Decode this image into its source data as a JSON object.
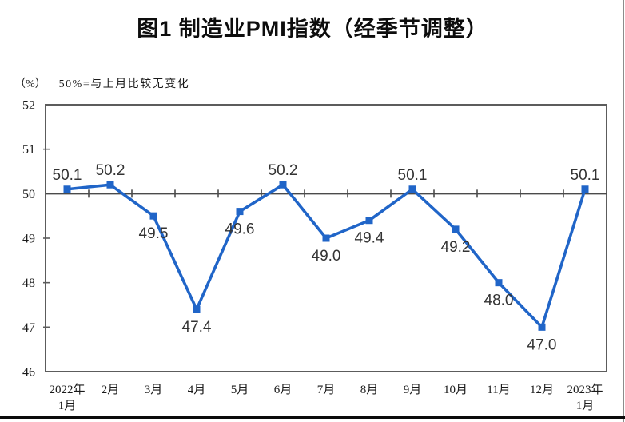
{
  "chart_data": {
    "type": "line",
    "title": "图1 制造业PMI指数（经季节调整）",
    "unit_label": "（%）",
    "note": "50%=与上月比较无变化",
    "categories": [
      "2022年1月",
      "2月",
      "3月",
      "4月",
      "5月",
      "6月",
      "7月",
      "8月",
      "9月",
      "10月",
      "11月",
      "12月",
      "2023年1月"
    ],
    "x_labels": [
      [
        "2022年",
        "1月"
      ],
      [
        "2月"
      ],
      [
        "3月"
      ],
      [
        "4月"
      ],
      [
        "5月"
      ],
      [
        "6月"
      ],
      [
        "7月"
      ],
      [
        "8月"
      ],
      [
        "9月"
      ],
      [
        "10月"
      ],
      [
        "11月"
      ],
      [
        "12月"
      ],
      [
        "2023年",
        "1月"
      ]
    ],
    "series": [
      {
        "name": "制造业PMI",
        "values": [
          50.1,
          50.2,
          49.5,
          47.4,
          49.6,
          50.2,
          49.0,
          49.4,
          50.1,
          49.2,
          48.0,
          47.0,
          50.1
        ],
        "labels": [
          "50.1",
          "50.2",
          "49.5",
          "47.4",
          "49.6",
          "50.2",
          "49.0",
          "49.4",
          "50.1",
          "49.2",
          "48.0",
          "47.0",
          "50.1"
        ],
        "label_positions": [
          "above",
          "above",
          "below",
          "below",
          "below",
          "above",
          "below",
          "below",
          "above",
          "below",
          "below",
          "below",
          "above"
        ]
      }
    ],
    "ylim": [
      46,
      52
    ],
    "y_ticks": [
      52,
      51,
      50,
      49,
      48,
      47,
      46
    ],
    "reference_line": 50,
    "grid": false,
    "legend": "none",
    "colors": {
      "series": "#2065c8",
      "plot_border": "#5c5c5c",
      "reference_line": "#4a4a4a",
      "data_label": "#333333",
      "axis_text": "#1a1a1a"
    }
  }
}
